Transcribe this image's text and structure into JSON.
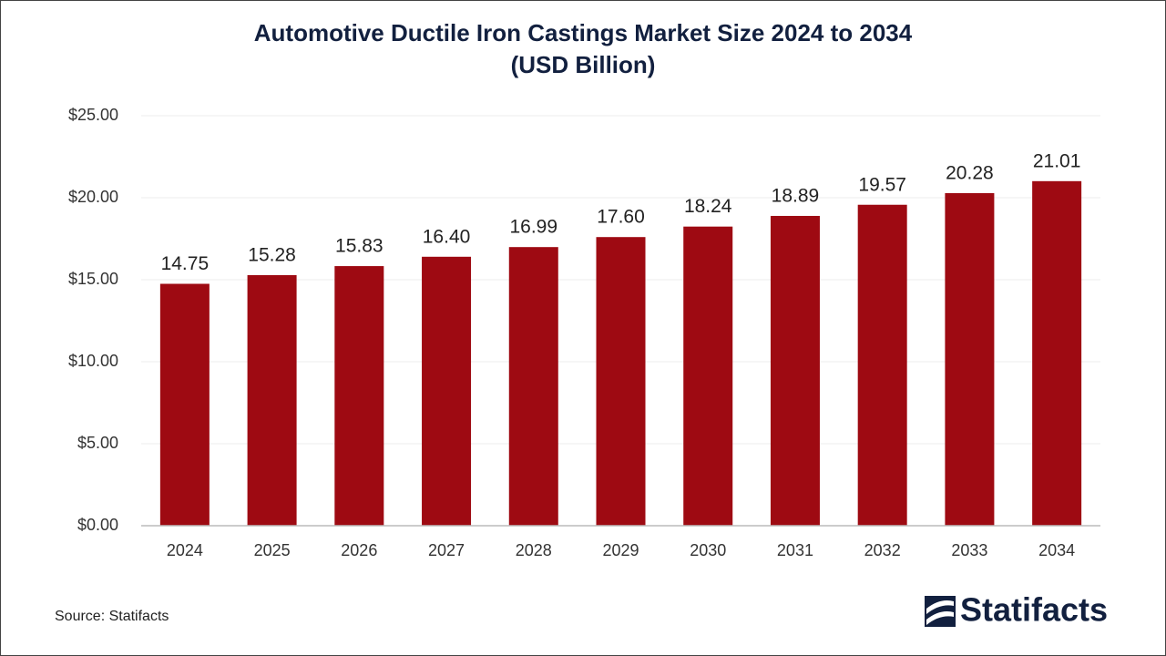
{
  "chart_data": {
    "type": "bar",
    "title": "Automotive Ductile Iron Castings Market Size 2024 to 2034",
    "subtitle": "(USD Billion)",
    "categories": [
      "2024",
      "2025",
      "2026",
      "2027",
      "2028",
      "2029",
      "2030",
      "2031",
      "2032",
      "2033",
      "2034"
    ],
    "values": [
      14.75,
      15.28,
      15.83,
      16.4,
      16.99,
      17.6,
      18.24,
      18.89,
      19.57,
      20.28,
      21.01
    ],
    "value_labels": [
      "14.75",
      "15.28",
      "15.83",
      "16.40",
      "16.99",
      "17.60",
      "18.24",
      "18.89",
      "19.57",
      "20.28",
      "21.01"
    ],
    "color": "#9e0a12",
    "ylim": [
      0,
      25
    ],
    "yticks": [
      {
        "value": 0,
        "label": "$0.00"
      },
      {
        "value": 5,
        "label": "$5.00"
      },
      {
        "value": 10,
        "label": "$10.00"
      },
      {
        "value": 15,
        "label": "$15.00"
      },
      {
        "value": 20,
        "label": "$20.00"
      },
      {
        "value": 25,
        "label": "$25.00"
      }
    ],
    "grid": true,
    "source": "Source: Statifacts",
    "brand": "Statifacts"
  }
}
